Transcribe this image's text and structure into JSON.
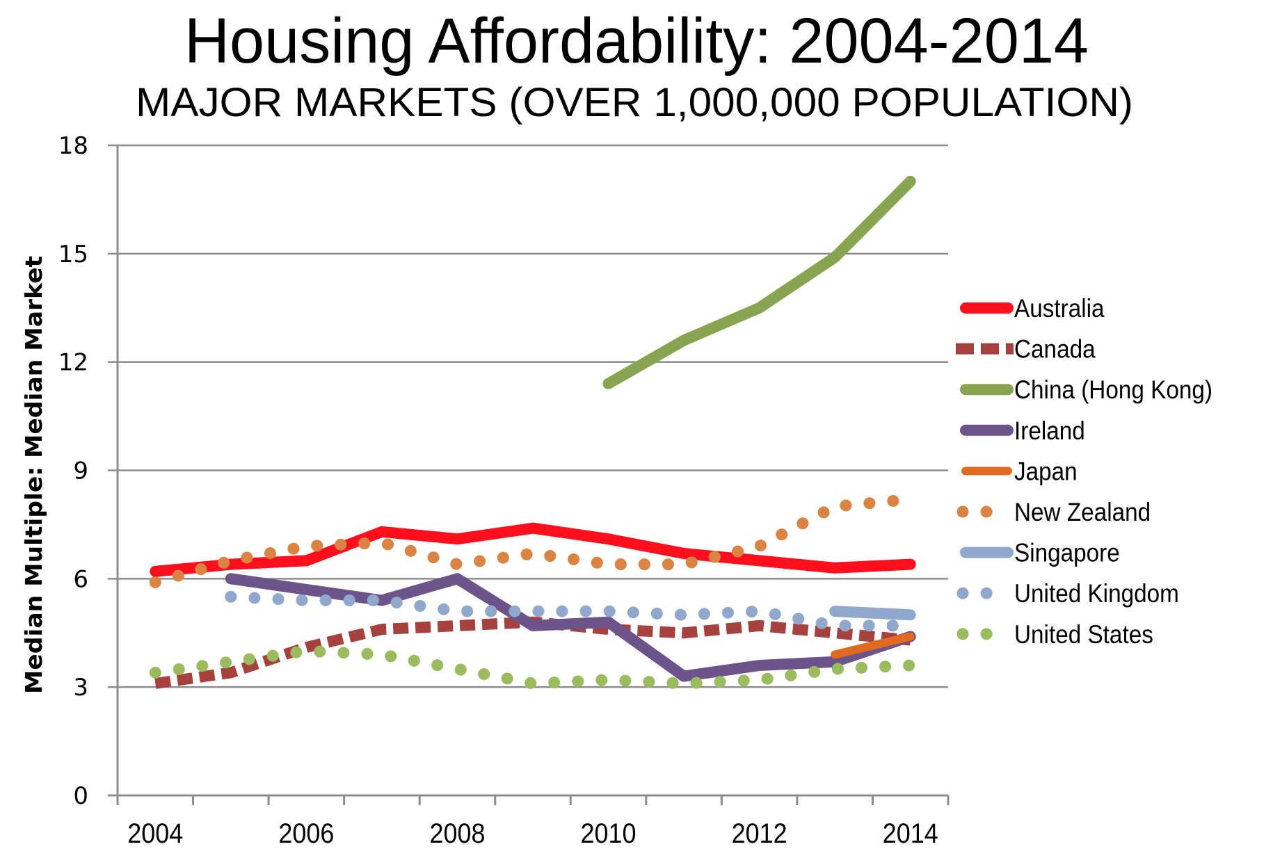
{
  "chart_data": {
    "type": "line",
    "title": "Housing Affordability: 2004-2014",
    "subtitle": "MAJOR MARKETS (OVER 1,000,000 POPULATION)",
    "xlabel": "",
    "ylabel": "Median Multiple: Median Market",
    "x": [
      2004,
      2005,
      2006,
      2007,
      2008,
      2009,
      2010,
      2011,
      2012,
      2013,
      2014
    ],
    "x_tick_labels": [
      "2004",
      "",
      "2006",
      "",
      "2008",
      "",
      "2010",
      "",
      "2012",
      "",
      "2014"
    ],
    "ylim": [
      0,
      18
    ],
    "y_ticks": [
      0,
      3,
      6,
      9,
      12,
      15,
      18
    ],
    "y_tick_labels": [
      "0",
      "3",
      "6",
      "9",
      "12",
      "15",
      "18"
    ],
    "grid": "horizontal",
    "legend_position": "right",
    "series": [
      {
        "name": "Australia",
        "color": "#ff0f1e",
        "style": "solid",
        "values": [
          6.2,
          6.4,
          6.5,
          7.3,
          7.1,
          7.4,
          7.1,
          6.7,
          6.5,
          6.3,
          6.4
        ]
      },
      {
        "name": "Canada",
        "color": "#a5413f",
        "style": "dash",
        "values": [
          3.1,
          3.4,
          4.1,
          4.6,
          4.7,
          4.8,
          4.6,
          4.5,
          4.7,
          4.5,
          4.3
        ]
      },
      {
        "name": "China (Hong Kong)",
        "color": "#87a550",
        "style": "solid",
        "values": [
          null,
          null,
          null,
          null,
          null,
          null,
          11.4,
          12.6,
          13.5,
          14.9,
          17.0
        ]
      },
      {
        "name": "Ireland",
        "color": "#6c548b",
        "style": "solid",
        "values": [
          null,
          6.0,
          5.7,
          5.4,
          6.0,
          4.7,
          4.8,
          3.3,
          3.6,
          3.7,
          4.4
        ]
      },
      {
        "name": "Japan",
        "color": "#e06b20",
        "style": "solid-thin",
        "values": [
          null,
          null,
          null,
          null,
          null,
          null,
          null,
          null,
          null,
          3.9,
          4.4
        ]
      },
      {
        "name": "New Zealand",
        "color": "#d98442",
        "style": "dot",
        "values": [
          5.9,
          6.5,
          6.9,
          7.0,
          6.4,
          6.7,
          6.4,
          6.4,
          6.9,
          8.0,
          8.2
        ]
      },
      {
        "name": "Singapore",
        "color": "#8fa8cc",
        "style": "solid",
        "values": [
          null,
          null,
          null,
          null,
          null,
          null,
          null,
          null,
          null,
          5.1,
          5.0
        ]
      },
      {
        "name": "United Kingdom",
        "color": "#8fa8cc",
        "style": "dot",
        "values": [
          null,
          5.5,
          5.4,
          5.4,
          5.1,
          5.1,
          5.1,
          5.0,
          5.1,
          4.7,
          4.7
        ]
      },
      {
        "name": "United States",
        "color": "#9bbb5f",
        "style": "dot",
        "values": [
          3.4,
          3.7,
          4.0,
          3.9,
          3.5,
          3.1,
          3.2,
          3.1,
          3.2,
          3.5,
          3.6
        ]
      }
    ]
  }
}
